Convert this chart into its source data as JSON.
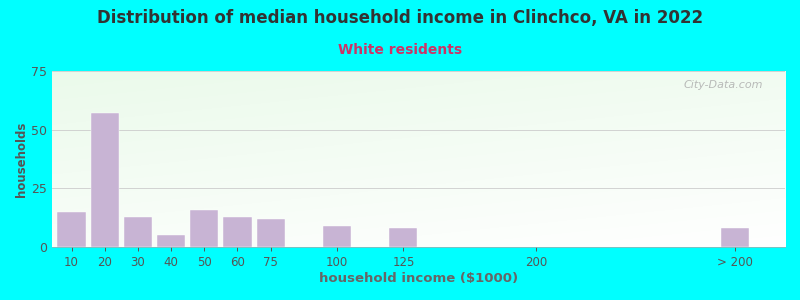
{
  "title": "Distribution of median household income in Clinchco, VA in 2022",
  "subtitle": "White residents",
  "xlabel": "household income ($1000)",
  "ylabel": "households",
  "background_color": "#00FFFF",
  "bar_color": "#c8b4d4",
  "title_color": "#333333",
  "subtitle_color": "#cc3366",
  "axis_label_color": "#555555",
  "tick_color": "#555555",
  "xlabel_color": "#666666",
  "watermark": "City-Data.com",
  "categories": [
    "10",
    "20",
    "30",
    "40",
    "50",
    "60",
    "75",
    "100",
    "125",
    "200",
    "> 200"
  ],
  "values": [
    15,
    57,
    13,
    5,
    16,
    13,
    12,
    9,
    8,
    0,
    8
  ],
  "x_positions": [
    0,
    1,
    2,
    3,
    4,
    5,
    6,
    8,
    10,
    14,
    20
  ],
  "bar_width": 0.85,
  "ylim": [
    0,
    75
  ],
  "yticks": [
    0,
    25,
    50,
    75
  ],
  "figsize": [
    8.0,
    3.0
  ],
  "dpi": 100
}
